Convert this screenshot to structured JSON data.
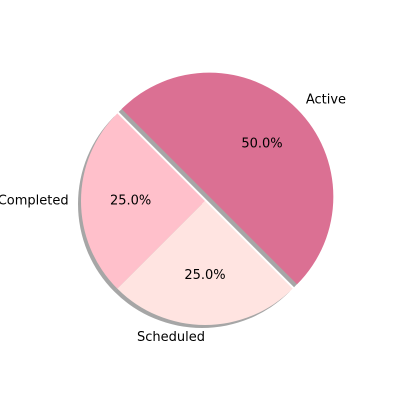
{
  "chart_data": {
    "type": "pie",
    "title": "",
    "labels": [
      "Active",
      "Completed",
      "Scheduled"
    ],
    "values": [
      50.0,
      25.0,
      25.0
    ],
    "percent_labels": [
      "50.0%",
      "25.0%",
      "25.0%"
    ],
    "colors": [
      "#db7093",
      "#ffc0cb",
      "#ffe4e1"
    ],
    "explode": [
      0.05,
      0,
      0
    ],
    "shadow": true,
    "start_angle_deg": -45,
    "direction": "counterclockwise"
  }
}
